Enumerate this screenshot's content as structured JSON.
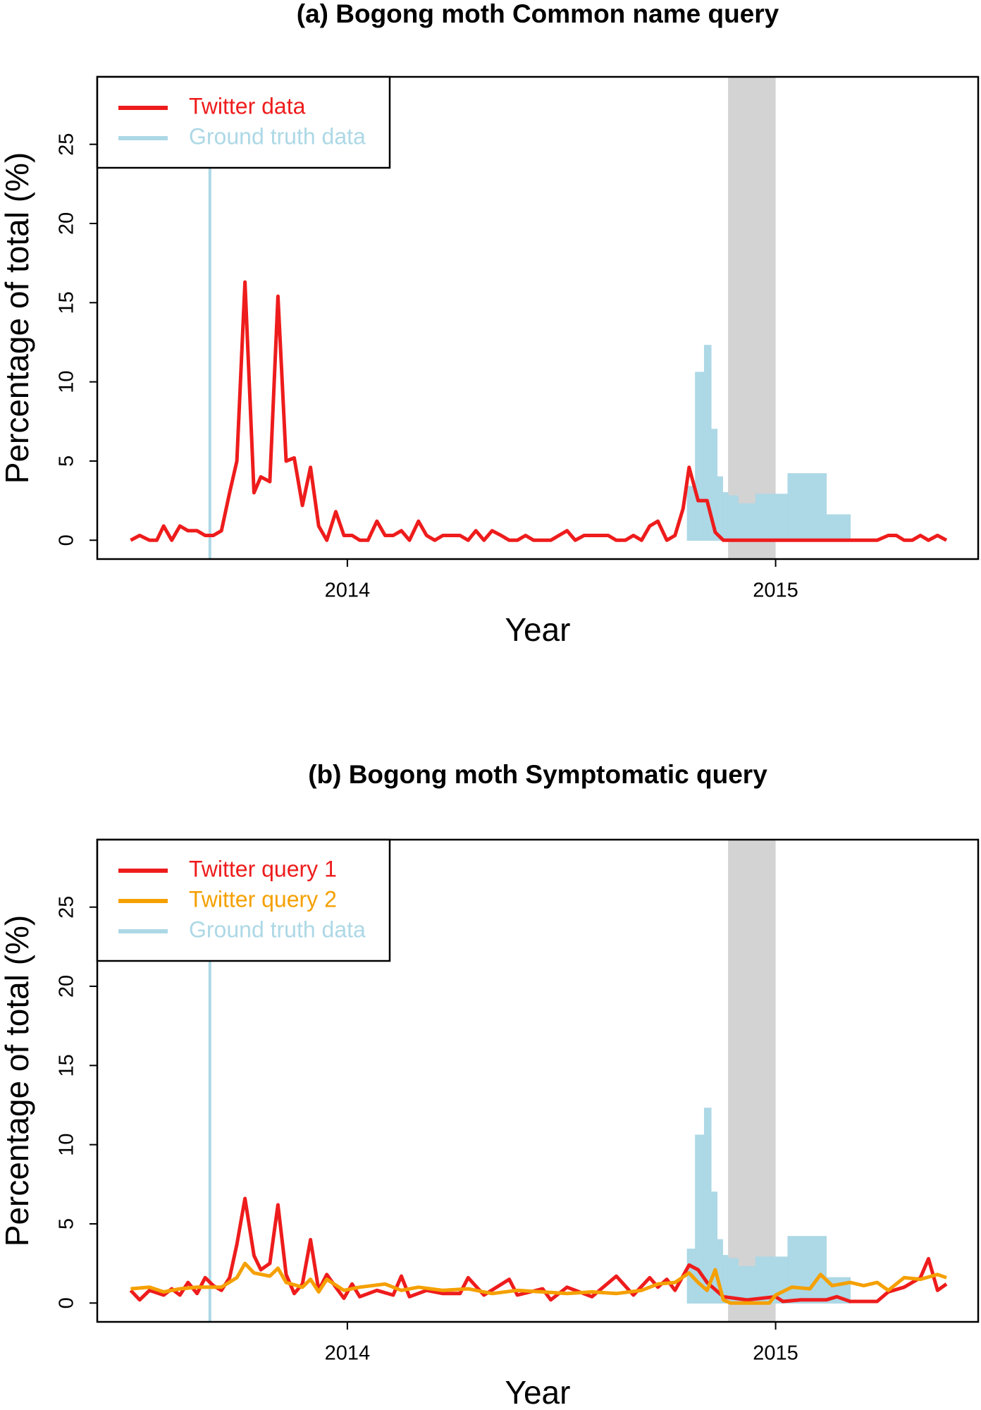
{
  "chart_data": [
    {
      "type": "line",
      "title": "(a) Bogong moth Common name query",
      "xlabel": "Year",
      "ylabel": "Percentage of total (%)",
      "xlim": [
        2013.416,
        2015.473
      ],
      "ylim": [
        -1.19,
        29.26
      ],
      "xticks": [
        2014,
        2015
      ],
      "yticks": [
        0,
        5,
        10,
        15,
        20,
        25
      ],
      "legend": "top-left",
      "shaded_x": [
        2014.889,
        2015.0
      ],
      "shaded_color": "#d3d3d3",
      "marker_x": 2013.679,
      "series": [
        {
          "name": "Twitter data",
          "color": "#ee1c1c",
          "x": [
            2013.494,
            2013.515,
            2013.538,
            2013.555,
            2013.571,
            2013.59,
            2013.609,
            2013.628,
            2013.649,
            2013.668,
            2013.687,
            2013.706,
            2013.725,
            2013.742,
            2013.761,
            2013.782,
            2013.798,
            2013.819,
            2013.838,
            2013.857,
            2013.876,
            2013.895,
            2013.914,
            2013.933,
            2013.952,
            2013.973,
            2013.992,
            2014.011,
            2014.029,
            2014.048,
            2014.069,
            2014.088,
            2014.107,
            2014.126,
            2014.145,
            2014.166,
            2014.185,
            2014.204,
            2014.223,
            2014.242,
            2014.263,
            2014.282,
            2014.3,
            2014.319,
            2014.338,
            2014.359,
            2014.378,
            2014.397,
            2014.416,
            2014.435,
            2014.456,
            2014.475,
            2014.494,
            2014.513,
            2014.532,
            2014.553,
            2014.571,
            2014.59,
            2014.609,
            2014.628,
            2014.649,
            2014.668,
            2014.687,
            2014.706,
            2014.725,
            2014.746,
            2014.765,
            2014.784,
            2014.798,
            2014.819,
            2014.84,
            2014.859,
            2014.878,
            2015.08,
            2015.237,
            2015.263,
            2015.282,
            2015.3,
            2015.319,
            2015.338,
            2015.357,
            2015.378,
            2015.399
          ],
          "values": [
            0,
            0.3,
            0,
            0,
            0.9,
            0,
            0.9,
            0.6,
            0.6,
            0.3,
            0.3,
            0.6,
            3,
            5,
            16.3,
            3,
            4,
            3.7,
            15.4,
            5,
            5.2,
            2.2,
            4.6,
            0.9,
            0,
            1.8,
            0.3,
            0.3,
            0,
            0,
            1.2,
            0.3,
            0.3,
            0.6,
            0,
            1.2,
            0.3,
            0,
            0.3,
            0.3,
            0.3,
            0,
            0.6,
            0,
            0.6,
            0.3,
            0,
            0,
            0.3,
            0,
            0,
            0,
            0.3,
            0.6,
            0,
            0.3,
            0.3,
            0.3,
            0.3,
            0,
            0,
            0.3,
            0,
            0.9,
            1.2,
            0,
            0.3,
            2,
            4.6,
            2.5,
            2.5,
            0.5,
            0,
            0,
            0,
            0.3,
            0.3,
            0,
            0,
            0.3,
            0,
            0.3,
            0
          ]
        },
        {
          "name": "Ground truth data",
          "color": "#add8e6",
          "bins": [
            2014.773,
            2014.794,
            2014.813,
            2014.834,
            2014.849,
            2014.863,
            2014.876,
            2014.889,
            2014.912,
            2014.954,
            2015.029,
            2015.118,
            2015.174,
            2015.269
          ],
          "values": [
            0,
            3.4,
            10.6,
            12.3,
            7,
            4,
            3,
            2.8,
            2.3,
            2.9,
            4.2,
            1.6,
            0
          ]
        }
      ]
    },
    {
      "type": "line",
      "title": "(b) Bogong moth Symptomatic query",
      "xlabel": "Year",
      "ylabel": "Percentage of total (%)",
      "xlim": [
        2013.416,
        2015.473
      ],
      "ylim": [
        -1.19,
        29.26
      ],
      "xticks": [
        2014,
        2015
      ],
      "yticks": [
        0,
        5,
        10,
        15,
        20,
        25
      ],
      "legend": "top-left",
      "shaded_x": [
        2014.889,
        2015.0
      ],
      "shaded_color": "#d3d3d3",
      "marker_x": 2013.679,
      "series": [
        {
          "name": "Twitter query 1",
          "color": "#ee1c1c",
          "x": [
            2013.494,
            2013.515,
            2013.538,
            2013.571,
            2013.59,
            2013.609,
            2013.628,
            2013.649,
            2013.668,
            2013.687,
            2013.706,
            2013.725,
            2013.742,
            2013.761,
            2013.782,
            2013.798,
            2013.819,
            2013.838,
            2013.857,
            2013.876,
            2013.895,
            2013.914,
            2013.933,
            2013.952,
            2013.973,
            2013.992,
            2014.011,
            2014.029,
            2014.069,
            2014.107,
            2014.126,
            2014.145,
            2014.185,
            2014.223,
            2014.263,
            2014.282,
            2014.319,
            2014.378,
            2014.397,
            2014.456,
            2014.475,
            2014.513,
            2014.571,
            2014.628,
            2014.668,
            2014.706,
            2014.725,
            2014.746,
            2014.765,
            2014.798,
            2014.819,
            2014.84,
            2014.878,
            2014.933,
            2015.0,
            2015.017,
            2015.059,
            2015.118,
            2015.143,
            2015.174,
            2015.237,
            2015.263,
            2015.3,
            2015.338,
            2015.357,
            2015.378,
            2015.399
          ],
          "values": [
            0.8,
            0.2,
            0.8,
            0.5,
            0.9,
            0.5,
            1.3,
            0.6,
            1.6,
            1.1,
            0.8,
            1.6,
            3.7,
            6.6,
            3,
            2.1,
            2.5,
            6.2,
            1.8,
            0.6,
            1.2,
            4,
            0.8,
            1.8,
            1.0,
            0.3,
            1.2,
            0.4,
            0.8,
            0.5,
            1.7,
            0.4,
            0.8,
            0.6,
            0.6,
            1.6,
            0.5,
            1.5,
            0.5,
            0.9,
            0.2,
            1.0,
            0.4,
            1.7,
            0.5,
            1.6,
            1.0,
            1.5,
            0.8,
            2.4,
            2.1,
            1.3,
            0.4,
            0.2,
            0.4,
            0.1,
            0.2,
            0.2,
            0.4,
            0.1,
            0.1,
            0.7,
            1,
            1.6,
            2.8,
            0.8,
            1.2
          ]
        },
        {
          "name": "Twitter query 2",
          "color": "#f5a000",
          "x": [
            2013.494,
            2013.538,
            2013.571,
            2013.609,
            2013.649,
            2013.706,
            2013.742,
            2013.761,
            2013.782,
            2013.819,
            2013.838,
            2013.857,
            2013.895,
            2013.914,
            2013.933,
            2013.952,
            2013.992,
            2014.029,
            2014.088,
            2014.126,
            2014.166,
            2014.223,
            2014.282,
            2014.338,
            2014.397,
            2014.456,
            2014.513,
            2014.571,
            2014.628,
            2014.687,
            2014.725,
            2014.765,
            2014.798,
            2014.819,
            2014.84,
            2014.859,
            2014.878,
            2014.895,
            2014.985,
            2015.0,
            2015.038,
            2015.08,
            2015.105,
            2015.132,
            2015.174,
            2015.206,
            2015.237,
            2015.263,
            2015.3,
            2015.338,
            2015.378,
            2015.399
          ],
          "values": [
            0.9,
            1.0,
            0.7,
            0.9,
            1.0,
            1.0,
            1.6,
            2.5,
            1.9,
            1.7,
            2.2,
            1.3,
            1.0,
            1.5,
            0.7,
            1.5,
            0.8,
            1.0,
            1.2,
            0.8,
            1.0,
            0.8,
            0.9,
            0.6,
            0.8,
            0.7,
            0.6,
            0.7,
            0.6,
            0.8,
            1.2,
            1.3,
            1.9,
            1.3,
            0.8,
            2.1,
            0.2,
            0,
            0,
            0.5,
            1.0,
            0.9,
            1.8,
            1.1,
            1.3,
            1.1,
            1.3,
            0.8,
            1.6,
            1.5,
            1.8,
            1.6
          ]
        },
        {
          "name": "Ground truth data",
          "color": "#add8e6",
          "bins": [
            2014.773,
            2014.794,
            2014.813,
            2014.834,
            2014.849,
            2014.863,
            2014.876,
            2014.889,
            2014.912,
            2014.954,
            2015.029,
            2015.118,
            2015.174,
            2015.269
          ],
          "values": [
            0,
            3.4,
            10.6,
            12.3,
            7,
            4,
            3,
            2.8,
            2.3,
            2.9,
            4.2,
            1.6,
            0
          ]
        }
      ]
    }
  ]
}
